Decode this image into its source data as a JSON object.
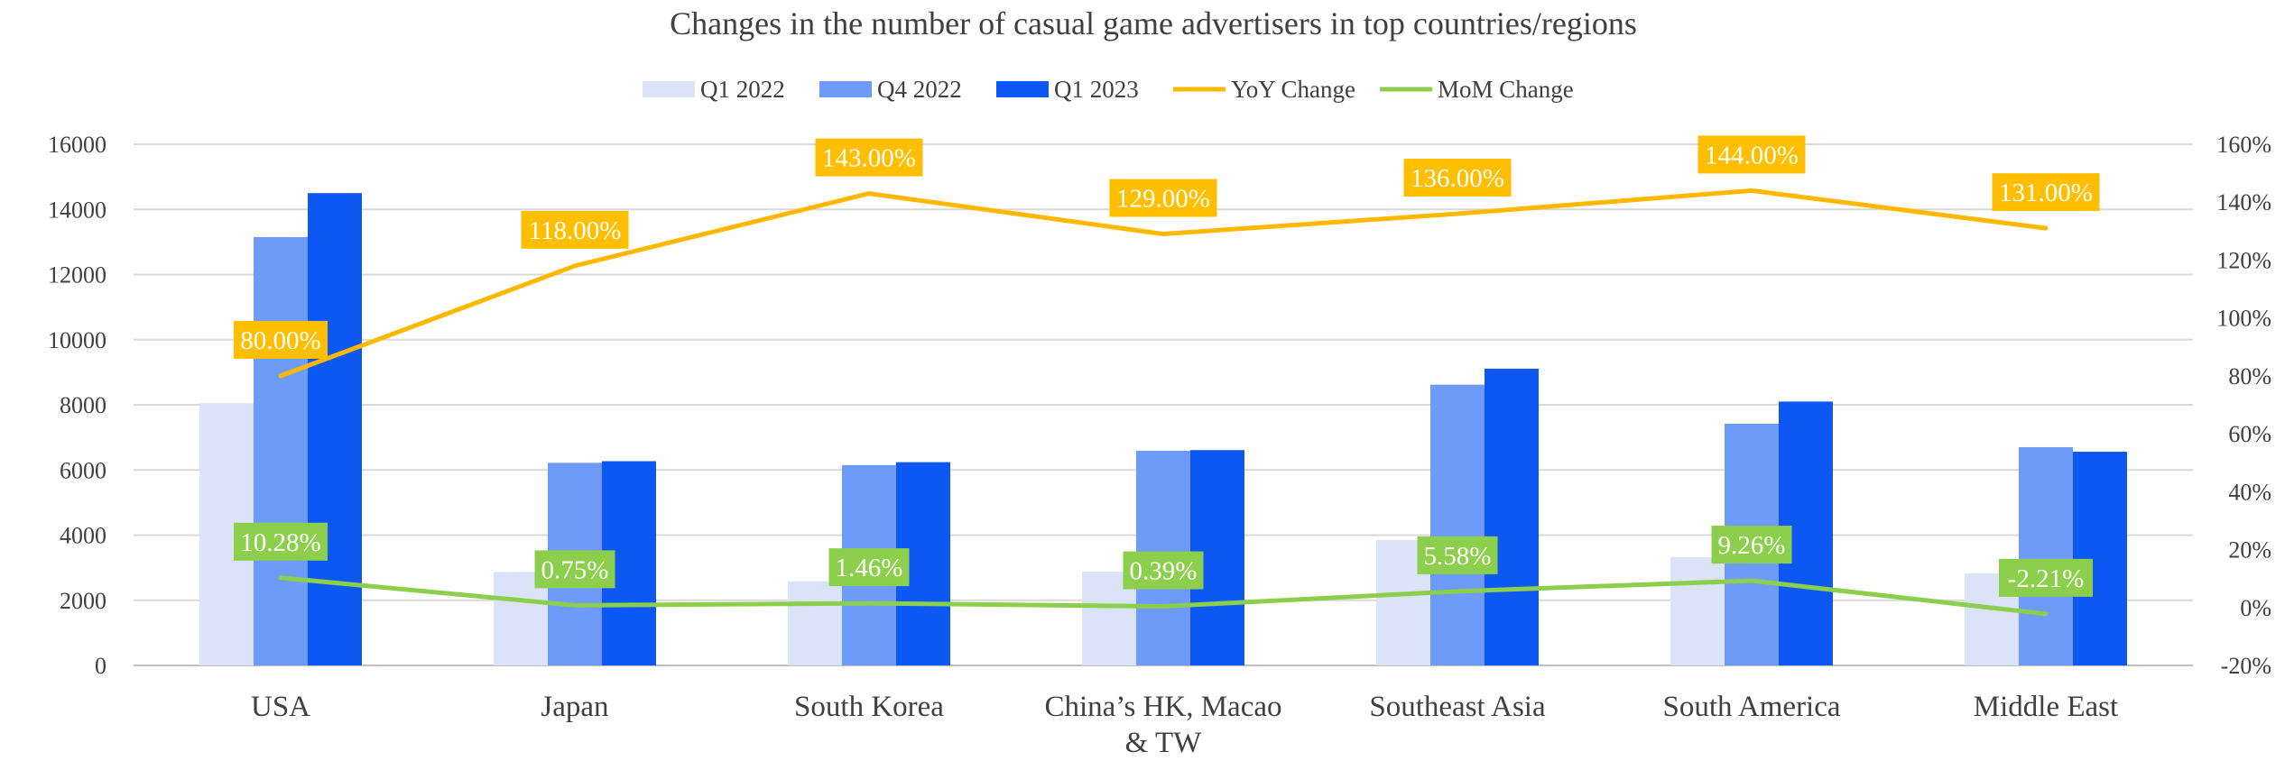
{
  "chart_data": {
    "type": "bar",
    "title": "Changes in the number of casual game advertisers in top countries/regions",
    "categories": [
      "USA",
      "Japan",
      "South Korea",
      "China’s HK, Macao & TW",
      "Southeast Asia",
      "South America",
      "Middle East"
    ],
    "category_lines": [
      [
        "USA"
      ],
      [
        "Japan"
      ],
      [
        "South Korea"
      ],
      [
        "China’s HK, Macao",
        "& TW"
      ],
      [
        "Southeast Asia"
      ],
      [
        "South America"
      ],
      [
        "Middle East"
      ]
    ],
    "bar_series": [
      {
        "name": "Q1 2022",
        "color": "#DAE3F8",
        "values": [
          8050,
          2870,
          2580,
          2880,
          3850,
          3320,
          2830
        ]
      },
      {
        "name": "Q4 2022",
        "color": "#6E9BFA",
        "values": [
          13150,
          6220,
          6150,
          6590,
          8620,
          7420,
          6700
        ]
      },
      {
        "name": "Q1 2023",
        "color": "#0D58F2",
        "values": [
          14500,
          6270,
          6240,
          6610,
          9110,
          8100,
          6560
        ]
      }
    ],
    "line_series": [
      {
        "name": "YoY Change",
        "color": "#FFB800",
        "label_bg": "#FFBF00",
        "values": [
          80,
          118,
          143,
          129,
          136,
          144,
          131
        ],
        "labels": [
          "80.00%",
          "118.00%",
          "143.00%",
          "129.00%",
          "136.00%",
          "144.00%",
          "131.00%"
        ]
      },
      {
        "name": "MoM Change",
        "color": "#8CCF4C",
        "label_bg": "#8CCF4C",
        "values": [
          10.28,
          0.75,
          1.46,
          0.39,
          5.58,
          9.26,
          -2.21
        ],
        "labels": [
          "10.28%",
          "0.75%",
          "1.46%",
          "0.39%",
          "5.58%",
          "9.26%",
          "-2.21%"
        ]
      }
    ],
    "y_left": {
      "min": 0,
      "max": 16000,
      "ticks": [
        "0",
        "2000",
        "4000",
        "6000",
        "8000",
        "10000",
        "12000",
        "14000",
        "16000"
      ]
    },
    "y_right": {
      "min": -20,
      "max": 160,
      "ticks": [
        "-20%",
        "0%",
        "20%",
        "40%",
        "60%",
        "80%",
        "100%",
        "120%",
        "140%",
        "160%"
      ]
    },
    "grid": true,
    "legend_position": "top-center"
  }
}
